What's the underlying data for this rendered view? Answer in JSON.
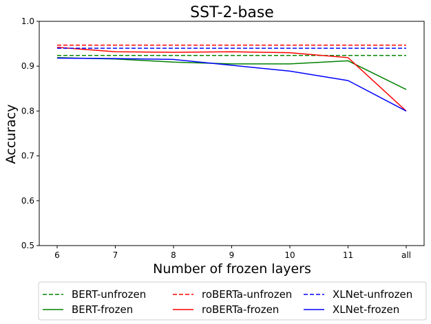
{
  "chart_data": {
    "type": "line",
    "title": "SST-2-base",
    "xlabel": "Number of frozen layers",
    "ylabel": "Accuracy",
    "categories": [
      "6",
      "7",
      "8",
      "9",
      "10",
      "11",
      "all"
    ],
    "ylim": [
      0.5,
      1.0
    ],
    "yticks": [
      "0.5",
      "0.6",
      "0.7",
      "0.8",
      "0.9",
      "1.0"
    ],
    "grid": false,
    "legend_placement": "bottom",
    "series": [
      {
        "name": "BERT-unfrozen",
        "style": "dashed",
        "color": "#008000",
        "values": [
          0.924,
          0.924,
          0.924,
          0.924,
          0.924,
          0.924,
          0.924
        ]
      },
      {
        "name": "BERT-frozen",
        "style": "solid",
        "color": "#008000",
        "values": [
          0.919,
          0.916,
          0.909,
          0.905,
          0.905,
          0.912,
          0.848
        ]
      },
      {
        "name": "roBERTa-unfrozen",
        "style": "dashed",
        "color": "#ff0000",
        "values": [
          0.947,
          0.947,
          0.947,
          0.947,
          0.947,
          0.947,
          0.947
        ]
      },
      {
        "name": "roBERTa-frozen",
        "style": "solid",
        "color": "#ff0000",
        "values": [
          0.942,
          0.932,
          0.931,
          0.932,
          0.93,
          0.919,
          0.8
        ]
      },
      {
        "name": "XLNet-unfrozen",
        "style": "dashed",
        "color": "#0000ff",
        "values": [
          0.94,
          0.94,
          0.94,
          0.94,
          0.94,
          0.94,
          0.94
        ]
      },
      {
        "name": "XLNet-frozen",
        "style": "solid",
        "color": "#0000ff",
        "values": [
          0.918,
          0.917,
          0.915,
          0.902,
          0.889,
          0.868,
          0.8
        ]
      }
    ]
  }
}
